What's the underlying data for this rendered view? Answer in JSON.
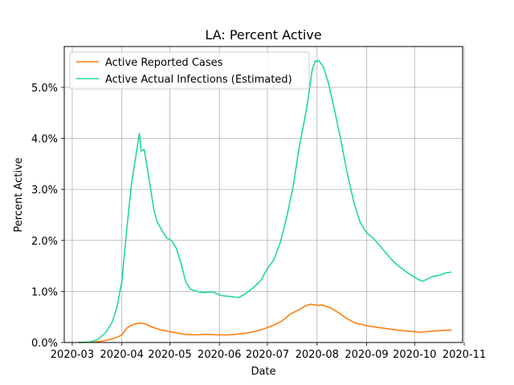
{
  "chart_data": {
    "type": "line",
    "title": "LA: Percent Active",
    "xlabel": "Date",
    "ylabel": "Percent Active",
    "xlim": [
      "2020-02-25",
      "2020-10-31"
    ],
    "ylim": [
      0.0,
      5.8
    ],
    "grid": true,
    "legend_position": "top-left",
    "x_ticks": [
      "2020-03",
      "2020-04",
      "2020-05",
      "2020-06",
      "2020-07",
      "2020-08",
      "2020-09",
      "2020-10",
      "2020-11"
    ],
    "y_ticks": [
      "0.0%",
      "1.0%",
      "2.0%",
      "3.0%",
      "4.0%",
      "5.0%"
    ],
    "series": [
      {
        "name": "Active Reported Cases",
        "color": "#ff7f0e",
        "points": [
          [
            "2020-03-05",
            0.0
          ],
          [
            "2020-03-15",
            0.01
          ],
          [
            "2020-03-22",
            0.04
          ],
          [
            "2020-03-29",
            0.1
          ],
          [
            "2020-04-01",
            0.15
          ],
          [
            "2020-04-04",
            0.28
          ],
          [
            "2020-04-07",
            0.34
          ],
          [
            "2020-04-10",
            0.37
          ],
          [
            "2020-04-13",
            0.38
          ],
          [
            "2020-04-16",
            0.36
          ],
          [
            "2020-04-20",
            0.3
          ],
          [
            "2020-04-25",
            0.25
          ],
          [
            "2020-05-01",
            0.21
          ],
          [
            "2020-05-05",
            0.19
          ],
          [
            "2020-05-10",
            0.16
          ],
          [
            "2020-05-17",
            0.15
          ],
          [
            "2020-05-24",
            0.16
          ],
          [
            "2020-05-31",
            0.15
          ],
          [
            "2020-06-07",
            0.15
          ],
          [
            "2020-06-14",
            0.17
          ],
          [
            "2020-06-21",
            0.2
          ],
          [
            "2020-06-28",
            0.26
          ],
          [
            "2020-07-05",
            0.34
          ],
          [
            "2020-07-10",
            0.42
          ],
          [
            "2020-07-15",
            0.55
          ],
          [
            "2020-07-20",
            0.63
          ],
          [
            "2020-07-25",
            0.72
          ],
          [
            "2020-07-28",
            0.75
          ],
          [
            "2020-08-01",
            0.73
          ],
          [
            "2020-08-05",
            0.73
          ],
          [
            "2020-08-10",
            0.67
          ],
          [
            "2020-08-15",
            0.57
          ],
          [
            "2020-08-20",
            0.46
          ],
          [
            "2020-08-25",
            0.38
          ],
          [
            "2020-09-01",
            0.33
          ],
          [
            "2020-09-07",
            0.3
          ],
          [
            "2020-09-14",
            0.27
          ],
          [
            "2020-09-21",
            0.24
          ],
          [
            "2020-10-01",
            0.21
          ],
          [
            "2020-10-05",
            0.2
          ],
          [
            "2020-10-10",
            0.22
          ],
          [
            "2020-10-15",
            0.23
          ],
          [
            "2020-10-20",
            0.24
          ],
          [
            "2020-10-24",
            0.24
          ]
        ]
      },
      {
        "name": "Active Actual Infections (Estimated)",
        "color": "#1fd99c",
        "points": [
          [
            "2020-03-05",
            0.0
          ],
          [
            "2020-03-12",
            0.01
          ],
          [
            "2020-03-17",
            0.06
          ],
          [
            "2020-03-22",
            0.2
          ],
          [
            "2020-03-26",
            0.4
          ],
          [
            "2020-03-29",
            0.7
          ],
          [
            "2020-04-01",
            1.2
          ],
          [
            "2020-04-04",
            2.2
          ],
          [
            "2020-04-07",
            3.1
          ],
          [
            "2020-04-10",
            3.7
          ],
          [
            "2020-04-12",
            4.1
          ],
          [
            "2020-04-13",
            3.75
          ],
          [
            "2020-04-15",
            3.78
          ],
          [
            "2020-04-18",
            3.2
          ],
          [
            "2020-04-21",
            2.6
          ],
          [
            "2020-04-23",
            2.37
          ],
          [
            "2020-04-26",
            2.2
          ],
          [
            "2020-04-29",
            2.05
          ],
          [
            "2020-05-02",
            2.0
          ],
          [
            "2020-05-05",
            1.85
          ],
          [
            "2020-05-08",
            1.55
          ],
          [
            "2020-05-11",
            1.18
          ],
          [
            "2020-05-14",
            1.04
          ],
          [
            "2020-05-18",
            1.0
          ],
          [
            "2020-05-22",
            0.98
          ],
          [
            "2020-05-28",
            0.99
          ],
          [
            "2020-06-02",
            0.92
          ],
          [
            "2020-06-08",
            0.9
          ],
          [
            "2020-06-13",
            0.88
          ],
          [
            "2020-06-17",
            0.95
          ],
          [
            "2020-06-22",
            1.07
          ],
          [
            "2020-06-27",
            1.22
          ],
          [
            "2020-07-01",
            1.45
          ],
          [
            "2020-07-05",
            1.62
          ],
          [
            "2020-07-09",
            1.95
          ],
          [
            "2020-07-13",
            2.45
          ],
          [
            "2020-07-17",
            3.05
          ],
          [
            "2020-07-21",
            3.85
          ],
          [
            "2020-07-25",
            4.5
          ],
          [
            "2020-07-27",
            4.9
          ],
          [
            "2020-07-29",
            5.35
          ],
          [
            "2020-07-31",
            5.52
          ],
          [
            "2020-08-01",
            5.5
          ],
          [
            "2020-08-02",
            5.53
          ],
          [
            "2020-08-05",
            5.4
          ],
          [
            "2020-08-08",
            5.1
          ],
          [
            "2020-08-12",
            4.55
          ],
          [
            "2020-08-16",
            3.95
          ],
          [
            "2020-08-20",
            3.3
          ],
          [
            "2020-08-24",
            2.75
          ],
          [
            "2020-08-28",
            2.35
          ],
          [
            "2020-09-01",
            2.15
          ],
          [
            "2020-09-05",
            2.05
          ],
          [
            "2020-09-10",
            1.87
          ],
          [
            "2020-09-15",
            1.68
          ],
          [
            "2020-09-20",
            1.52
          ],
          [
            "2020-09-25",
            1.4
          ],
          [
            "2020-09-30",
            1.3
          ],
          [
            "2020-10-03",
            1.24
          ],
          [
            "2020-10-06",
            1.2
          ],
          [
            "2020-10-10",
            1.26
          ],
          [
            "2020-10-13",
            1.3
          ],
          [
            "2020-10-17",
            1.32
          ],
          [
            "2020-10-20",
            1.36
          ],
          [
            "2020-10-24",
            1.38
          ]
        ]
      }
    ]
  }
}
